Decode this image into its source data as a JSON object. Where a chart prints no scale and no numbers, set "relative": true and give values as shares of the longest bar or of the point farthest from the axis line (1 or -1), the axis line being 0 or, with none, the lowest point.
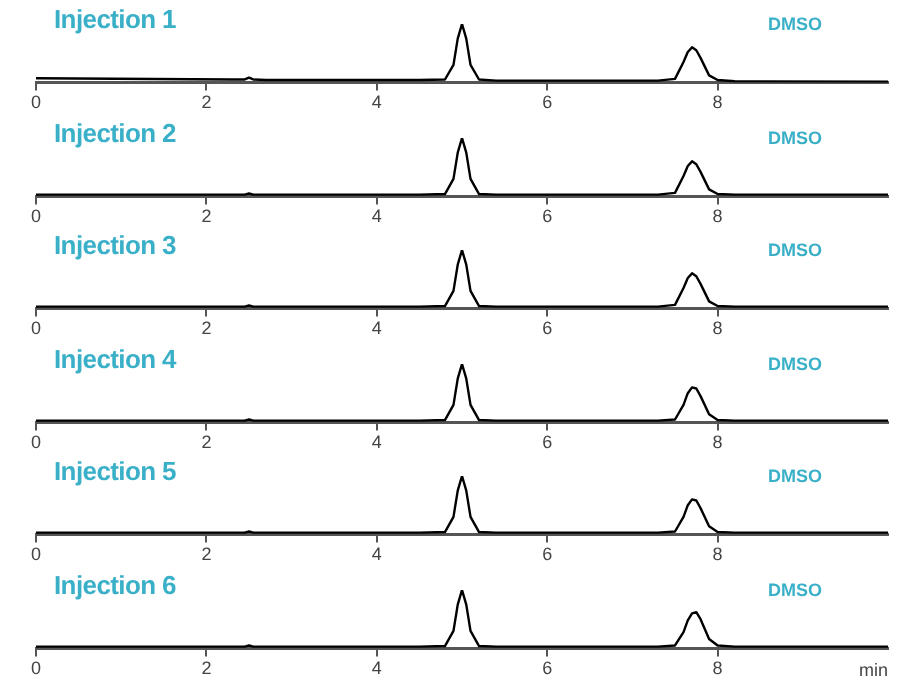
{
  "chart_data": [
    {
      "type": "line",
      "title": "Injection 1",
      "annotations": [
        "DMSO"
      ],
      "relative": true,
      "xlim": [
        0,
        10
      ],
      "xticks": [
        0,
        2,
        4,
        6,
        8
      ],
      "x": [
        0,
        2.3,
        2.45,
        2.5,
        2.55,
        2.7,
        4.5,
        4.8,
        4.9,
        4.95,
        5.0,
        5.05,
        5.1,
        5.2,
        5.4,
        7.3,
        7.5,
        7.6,
        7.65,
        7.7,
        7.75,
        7.8,
        7.9,
        8.0,
        8.2,
        10
      ],
      "series": [
        {
          "color": "#000000",
          "values": [
            0.07,
            0.05,
            0.05,
            0.08,
            0.05,
            0.04,
            0.04,
            0.05,
            0.3,
            0.75,
            1,
            0.75,
            0.3,
            0.05,
            0.03,
            0.03,
            0.06,
            0.35,
            0.52,
            0.6,
            0.55,
            0.42,
            0.12,
            0.04,
            0.02,
            0.01
          ]
        }
      ]
    },
    {
      "type": "line",
      "title": "Injection 2",
      "annotations": [
        "DMSO"
      ],
      "relative": true,
      "xlim": [
        0,
        10
      ],
      "xticks": [
        0,
        2,
        4,
        6,
        8
      ],
      "x": [
        0,
        2.3,
        2.45,
        2.5,
        2.55,
        2.7,
        4.5,
        4.8,
        4.9,
        4.95,
        5.0,
        5.05,
        5.1,
        5.2,
        5.4,
        7.3,
        7.5,
        7.6,
        7.65,
        7.7,
        7.75,
        7.8,
        7.9,
        8.0,
        8.2,
        10
      ],
      "series": [
        {
          "color": "#000000",
          "values": [
            0.03,
            0.03,
            0.03,
            0.05,
            0.03,
            0.03,
            0.03,
            0.04,
            0.3,
            0.75,
            1,
            0.75,
            0.3,
            0.04,
            0.03,
            0.03,
            0.06,
            0.35,
            0.52,
            0.6,
            0.55,
            0.42,
            0.12,
            0.04,
            0.03,
            0.03
          ]
        }
      ]
    },
    {
      "type": "line",
      "title": "Injection 3",
      "annotations": [
        "DMSO"
      ],
      "relative": true,
      "xlim": [
        0,
        10
      ],
      "xticks": [
        0,
        2,
        4,
        6,
        8
      ],
      "x": [
        0,
        2.3,
        2.45,
        2.5,
        2.55,
        2.7,
        4.5,
        4.8,
        4.9,
        4.95,
        5.0,
        5.05,
        5.1,
        5.2,
        5.4,
        7.3,
        7.5,
        7.6,
        7.65,
        7.7,
        7.75,
        7.8,
        7.9,
        8.0,
        8.2,
        10
      ],
      "series": [
        {
          "color": "#000000",
          "values": [
            0.03,
            0.03,
            0.03,
            0.05,
            0.03,
            0.03,
            0.03,
            0.04,
            0.3,
            0.75,
            1,
            0.75,
            0.3,
            0.04,
            0.03,
            0.03,
            0.06,
            0.35,
            0.52,
            0.6,
            0.55,
            0.42,
            0.12,
            0.04,
            0.03,
            0.03
          ]
        }
      ]
    },
    {
      "type": "line",
      "title": "Injection 4",
      "annotations": [
        "DMSO"
      ],
      "relative": true,
      "xlim": [
        0,
        10
      ],
      "xticks": [
        0,
        2,
        4,
        6,
        8
      ],
      "x": [
        0,
        2.3,
        2.45,
        2.5,
        2.55,
        2.7,
        4.5,
        4.8,
        4.9,
        4.95,
        5.0,
        5.05,
        5.1,
        5.2,
        5.4,
        7.3,
        7.5,
        7.6,
        7.65,
        7.7,
        7.75,
        7.8,
        7.9,
        8.0,
        8.2,
        10
      ],
      "series": [
        {
          "color": "#000000",
          "values": [
            0.03,
            0.03,
            0.03,
            0.05,
            0.03,
            0.03,
            0.03,
            0.04,
            0.3,
            0.75,
            1,
            0.75,
            0.3,
            0.04,
            0.03,
            0.03,
            0.05,
            0.3,
            0.5,
            0.6,
            0.58,
            0.45,
            0.14,
            0.04,
            0.03,
            0.03
          ]
        }
      ]
    },
    {
      "type": "line",
      "title": "Injection 5",
      "annotations": [
        "DMSO"
      ],
      "relative": true,
      "xlim": [
        0,
        10
      ],
      "xticks": [
        0,
        2,
        4,
        6,
        8
      ],
      "x": [
        0,
        2.3,
        2.45,
        2.5,
        2.55,
        2.7,
        4.5,
        4.8,
        4.9,
        4.95,
        5.0,
        5.05,
        5.1,
        5.2,
        5.4,
        7.3,
        7.5,
        7.6,
        7.65,
        7.7,
        7.75,
        7.8,
        7.9,
        8.0,
        8.2,
        10
      ],
      "series": [
        {
          "color": "#000000",
          "values": [
            0.03,
            0.03,
            0.03,
            0.05,
            0.03,
            0.03,
            0.03,
            0.04,
            0.3,
            0.75,
            1,
            0.75,
            0.3,
            0.04,
            0.03,
            0.03,
            0.05,
            0.3,
            0.5,
            0.6,
            0.58,
            0.45,
            0.14,
            0.04,
            0.03,
            0.03
          ]
        }
      ]
    },
    {
      "type": "line",
      "title": "Injection 6",
      "xlabel": "min",
      "annotations": [
        "DMSO"
      ],
      "relative": true,
      "xlim": [
        0,
        10
      ],
      "xticks": [
        0,
        2,
        4,
        6,
        8
      ],
      "x": [
        0,
        2.3,
        2.45,
        2.5,
        2.55,
        2.7,
        4.5,
        4.8,
        4.9,
        4.95,
        5.0,
        5.05,
        5.1,
        5.2,
        5.4,
        7.3,
        7.5,
        7.6,
        7.65,
        7.7,
        7.75,
        7.8,
        7.9,
        8.0,
        8.2,
        10
      ],
      "series": [
        {
          "color": "#000000",
          "values": [
            0.03,
            0.03,
            0.03,
            0.05,
            0.03,
            0.03,
            0.03,
            0.04,
            0.3,
            0.75,
            1,
            0.75,
            0.3,
            0.04,
            0.03,
            0.03,
            0.05,
            0.28,
            0.48,
            0.6,
            0.62,
            0.5,
            0.16,
            0.05,
            0.03,
            0.03
          ]
        }
      ]
    }
  ]
}
